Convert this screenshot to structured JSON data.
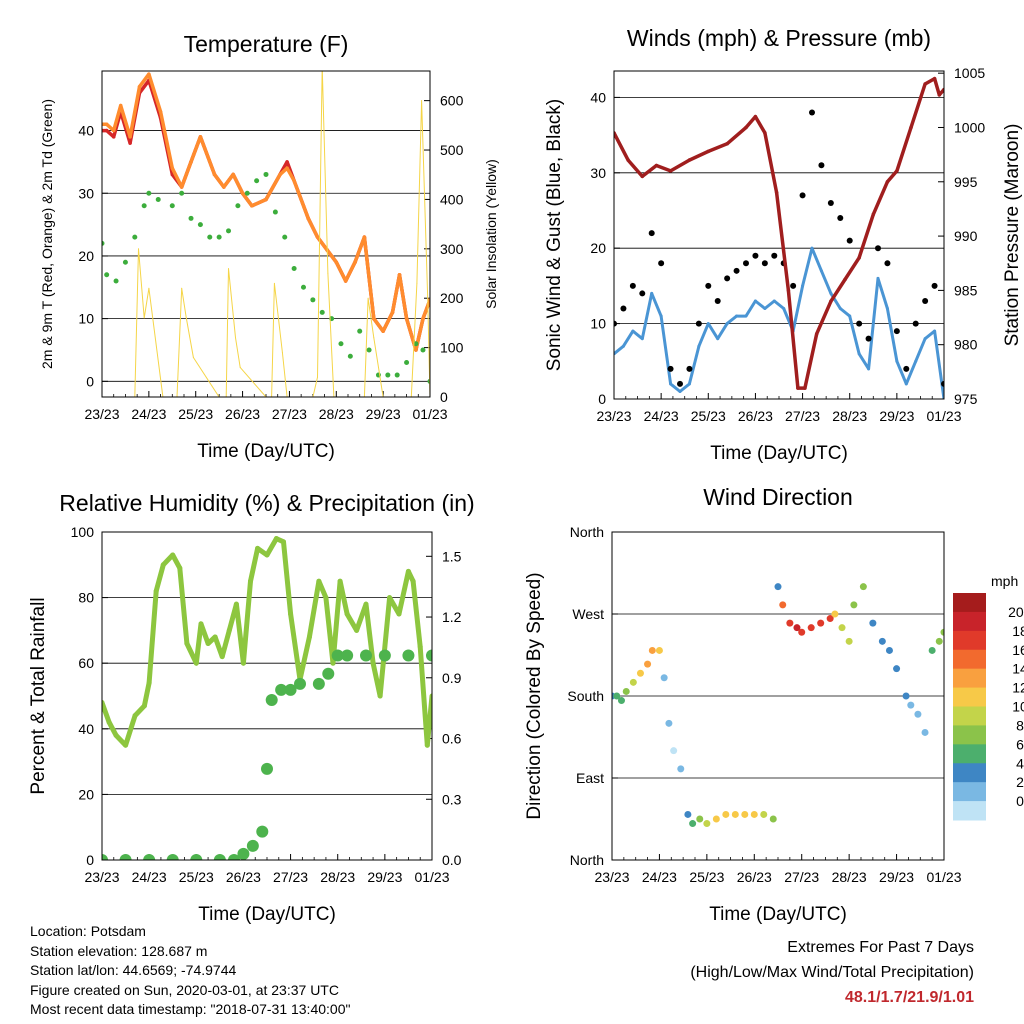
{
  "time_ticks": [
    "23/23",
    "24/23",
    "25/23",
    "26/23",
    "27/23",
    "28/23",
    "29/23",
    "01/23"
  ],
  "xlabel": "Time (Day/UTC)",
  "chart_data": [
    {
      "id": "temperature",
      "type": "line",
      "title": "Temperature (F)",
      "xlabel": "Time (Day/UTC)",
      "ylabel": "2m & 9m T (Red, Orange) & 2m Td (Green)",
      "y2label": "Solar Insolation (Yellow)",
      "ylim": [
        -2.5,
        49.5
      ],
      "y2lim": [
        0,
        660
      ],
      "yticks": [
        "0",
        "10",
        "20",
        "30",
        "40"
      ],
      "y2ticks": [
        "0",
        "100",
        "200",
        "300",
        "400",
        "500",
        "600"
      ],
      "grid": true,
      "series": [
        {
          "color": "#d62728",
          "kind": "line",
          "x": [
            0,
            0.1,
            0.25,
            0.4,
            0.6,
            0.8,
            1.0,
            1.25,
            1.5,
            1.7,
            1.9,
            2.1,
            2.4,
            2.6,
            2.8,
            3.0,
            3.2,
            3.5,
            3.8,
            3.95,
            4.1,
            4.4,
            4.6,
            4.8,
            5.0,
            5.2,
            5.4,
            5.6,
            5.8,
            6.0,
            6.2,
            6.35,
            6.5,
            6.7,
            6.85,
            7.0
          ],
          "y": [
            40,
            40,
            39,
            43,
            38,
            46,
            48,
            42,
            33,
            31,
            35,
            39,
            33,
            31,
            33,
            30,
            28,
            29,
            33,
            35,
            32,
            26,
            23,
            21,
            19,
            16,
            19,
            23,
            10,
            8,
            11,
            17,
            10,
            5,
            10,
            13
          ]
        },
        {
          "color": "#ff8c2e",
          "kind": "line",
          "x": [
            0,
            0.1,
            0.25,
            0.4,
            0.6,
            0.8,
            1.0,
            1.25,
            1.5,
            1.7,
            1.9,
            2.1,
            2.4,
            2.6,
            2.8,
            3.0,
            3.2,
            3.5,
            3.8,
            3.95,
            4.1,
            4.4,
            4.6,
            4.8,
            5.0,
            5.2,
            5.4,
            5.6,
            5.8,
            6.0,
            6.2,
            6.35,
            6.5,
            6.7,
            6.85,
            7.0
          ],
          "y": [
            41,
            41,
            40,
            44,
            39,
            47,
            49,
            43,
            34,
            31,
            35,
            39,
            33,
            31,
            33,
            30,
            28,
            29,
            33,
            34,
            32,
            26,
            23,
            21,
            19,
            16,
            19,
            23,
            10,
            8,
            11,
            17,
            10,
            5,
            10,
            13
          ]
        },
        {
          "color": "#3cad3c",
          "kind": "points",
          "x": [
            0,
            0.1,
            0.3,
            0.5,
            0.7,
            0.9,
            1.0,
            1.2,
            1.5,
            1.7,
            1.9,
            2.1,
            2.3,
            2.5,
            2.7,
            2.9,
            3.1,
            3.3,
            3.5,
            3.7,
            3.9,
            4.1,
            4.3,
            4.5,
            4.7,
            4.9,
            5.1,
            5.3,
            5.5,
            5.7,
            5.9,
            6.1,
            6.3,
            6.5,
            6.7,
            6.85,
            7.0
          ],
          "y": [
            22,
            17,
            16,
            19,
            23,
            28,
            30,
            29,
            28,
            30,
            26,
            25,
            23,
            23,
            24,
            28,
            30,
            32,
            33,
            27,
            23,
            18,
            15,
            13,
            11,
            10,
            6,
            4,
            8,
            5,
            1,
            1,
            1,
            3,
            6,
            5,
            0
          ]
        },
        {
          "color": "#f5d547",
          "kind": "line",
          "x": [
            0,
            0.7,
            0.78,
            0.9,
            1.0,
            1.3,
            1.6,
            1.7,
            1.8,
            1.95,
            2.5,
            2.65,
            2.7,
            2.85,
            2.95,
            3.5,
            3.62,
            3.68,
            3.85,
            3.95,
            4.5,
            4.6,
            4.7,
            4.82,
            4.95,
            5.6,
            5.68,
            5.8,
            5.9,
            6.0,
            6.6,
            6.72,
            6.82,
            6.95,
            7.0
          ],
          "y": [
            0,
            0,
            300,
            160,
            220,
            0,
            0,
            220,
            160,
            80,
            0,
            0,
            260,
            120,
            60,
            0,
            0,
            230,
            90,
            0,
            0,
            40,
            670,
            250,
            0,
            0,
            200,
            120,
            60,
            0,
            0,
            230,
            600,
            200,
            0
          ]
        }
      ]
    },
    {
      "id": "winds",
      "type": "line",
      "title": "Winds (mph) & Pressure (mb)",
      "xlabel": "Time (Day/UTC)",
      "ylabel": "Sonic Wind & Gust (Blue, Black)",
      "y2label": "Station Pressure (Maroon)",
      "ylim": [
        0,
        43.5
      ],
      "y2lim": [
        975,
        1005.2
      ],
      "yticks": [
        "0",
        "10",
        "20",
        "30",
        "40"
      ],
      "y2ticks": [
        "975",
        "980",
        "985",
        "990",
        "995",
        "1000",
        "1005"
      ],
      "grid": true,
      "series": [
        {
          "color": "#4a95d4",
          "kind": "line",
          "x": [
            0,
            0.2,
            0.4,
            0.6,
            0.8,
            1.0,
            1.2,
            1.4,
            1.6,
            1.8,
            2.0,
            2.2,
            2.4,
            2.6,
            2.8,
            3.0,
            3.2,
            3.4,
            3.6,
            3.8,
            4.0,
            4.2,
            4.4,
            4.6,
            4.8,
            5.0,
            5.2,
            5.4,
            5.6,
            5.8,
            6.0,
            6.2,
            6.4,
            6.6,
            6.8,
            7.0
          ],
          "y": [
            6,
            7,
            9,
            8,
            14,
            11,
            2,
            1,
            2,
            7,
            10,
            8,
            10,
            11,
            11,
            13,
            12,
            13,
            12,
            9,
            15,
            20,
            17,
            14,
            12,
            11,
            6,
            4,
            16,
            12,
            5,
            2,
            5,
            8,
            9,
            0
          ]
        },
        {
          "color": "#000000",
          "kind": "points",
          "x": [
            0,
            0.2,
            0.4,
            0.6,
            0.8,
            1.0,
            1.2,
            1.4,
            1.6,
            1.8,
            2.0,
            2.2,
            2.4,
            2.6,
            2.8,
            3.0,
            3.2,
            3.4,
            3.6,
            3.8,
            4.0,
            4.2,
            4.4,
            4.6,
            4.8,
            5.0,
            5.2,
            5.4,
            5.6,
            5.8,
            6.0,
            6.2,
            6.4,
            6.6,
            6.8,
            7.0
          ],
          "y": [
            10,
            12,
            15,
            14,
            22,
            18,
            4,
            2,
            4,
            10,
            15,
            13,
            16,
            17,
            18,
            19,
            18,
            19,
            18,
            15,
            27,
            38,
            31,
            26,
            24,
            21,
            10,
            8,
            20,
            18,
            9,
            4,
            10,
            13,
            15,
            2
          ]
        },
        {
          "color": "#a01e1e",
          "kind": "line",
          "x": [
            0,
            0.3,
            0.6,
            0.9,
            1.2,
            1.6,
            2.0,
            2.4,
            2.8,
            3.0,
            3.2,
            3.45,
            3.7,
            3.9,
            4.05,
            4.3,
            4.6,
            4.9,
            5.2,
            5.5,
            5.8,
            6.0,
            6.3,
            6.6,
            6.8,
            6.9,
            7.0
          ],
          "y": [
            999.5,
            997,
            995.5,
            996.5,
            996,
            997,
            997.8,
            998.5,
            1000,
            1001,
            999.5,
            994,
            985,
            976,
            976,
            981,
            984,
            986,
            988,
            992,
            995,
            996,
            1000,
            1004,
            1004.5,
            1003,
            1003.5
          ]
        }
      ]
    },
    {
      "id": "humidity",
      "type": "line",
      "title": "Relative Humidity (%) & Precipitation (in)",
      "xlabel": "Time (Day/UTC)",
      "ylabel": "Percent & Total Rainfall",
      "ylim": [
        0,
        100
      ],
      "y2lim": [
        0,
        1.62
      ],
      "yticks": [
        "0",
        "20",
        "40",
        "60",
        "80",
        "100"
      ],
      "y2ticks": [
        "0.0",
        "0.3",
        "0.6",
        "0.9",
        "1.2",
        "1.5"
      ],
      "grid": true,
      "series": [
        {
          "color": "#8dc63f",
          "kind": "line",
          "x": [
            0,
            0.15,
            0.3,
            0.5,
            0.7,
            0.9,
            1.0,
            1.15,
            1.3,
            1.5,
            1.65,
            1.8,
            2.0,
            2.1,
            2.25,
            2.4,
            2.55,
            2.7,
            2.85,
            3.0,
            3.15,
            3.3,
            3.5,
            3.7,
            3.85,
            4.0,
            4.2,
            4.4,
            4.6,
            4.75,
            4.9,
            5.05,
            5.2,
            5.4,
            5.6,
            5.75,
            5.9,
            6.1,
            6.3,
            6.5,
            6.6,
            6.75,
            6.9,
            7.0
          ],
          "y": [
            48,
            42,
            38,
            35,
            44,
            47,
            54,
            82,
            90,
            93,
            89,
            66,
            60,
            72,
            66,
            68,
            62,
            70,
            78,
            60,
            85,
            95,
            93,
            98,
            97,
            75,
            55,
            68,
            85,
            80,
            60,
            85,
            75,
            70,
            78,
            60,
            50,
            80,
            75,
            88,
            85,
            65,
            35,
            50
          ]
        },
        {
          "color": "#4db34d",
          "kind": "points",
          "x": [
            0,
            0.5,
            1.0,
            1.5,
            2.0,
            2.5,
            2.8,
            3.0,
            3.2,
            3.4,
            3.5,
            3.6,
            3.8,
            4.0,
            4.2,
            4.6,
            4.8,
            5.0,
            5.2,
            5.6,
            6.0,
            6.5,
            7.0
          ],
          "y": [
            0,
            0,
            0,
            0,
            0,
            0,
            0,
            0.03,
            0.07,
            0.14,
            0.45,
            0.79,
            0.84,
            0.84,
            0.87,
            0.87,
            0.92,
            1.01,
            1.01,
            1.01,
            1.01,
            1.01,
            1.01
          ]
        }
      ]
    },
    {
      "id": "direction",
      "type": "scatter",
      "title": "Wind Direction",
      "xlabel": "Time (Day/UTC)",
      "ylabel": "Direction (Colored By Speed)",
      "ylim": [
        0,
        360
      ],
      "yticks": [
        "North",
        "East",
        "South",
        "West",
        "North"
      ],
      "grid": true,
      "colorbar": {
        "unit": "mph",
        "labels": [
          "20+",
          "18",
          "16",
          "14",
          "12",
          "10",
          "8",
          "6",
          "4",
          "2",
          "0"
        ],
        "colors": [
          "#a51c1c",
          "#c8232a",
          "#e03a2a",
          "#f26a2e",
          "#f9a03f",
          "#f7c948",
          "#c3d44a",
          "#8bc34a",
          "#4caf6d",
          "#3e86c4",
          "#7ab8e3",
          "#bfe3f5"
        ]
      },
      "series": [
        {
          "kind": "points",
          "x": [
            0,
            0.1,
            0.2,
            0.3,
            0.45,
            0.6,
            0.75,
            0.85,
            1.0,
            1.1,
            1.2,
            1.3,
            1.45,
            1.6,
            1.7,
            1.85,
            2.0,
            2.2,
            2.4,
            2.6,
            2.8,
            3.0,
            3.2,
            3.4,
            3.5,
            3.6,
            3.75,
            3.9,
            4.0,
            4.2,
            4.4,
            4.6,
            4.7,
            4.85,
            5.0,
            5.1,
            5.3,
            5.5,
            5.7,
            5.85,
            6.0,
            6.2,
            6.3,
            6.45,
            6.6,
            6.75,
            6.9,
            7.0
          ],
          "y": [
            180,
            180,
            175,
            185,
            195,
            205,
            215,
            230,
            230,
            200,
            150,
            120,
            100,
            50,
            40,
            45,
            40,
            45,
            50,
            50,
            50,
            50,
            50,
            45,
            300,
            280,
            260,
            255,
            250,
            255,
            260,
            265,
            270,
            255,
            240,
            280,
            300,
            260,
            240,
            230,
            210,
            180,
            170,
            160,
            140,
            230,
            240,
            250
          ],
          "speed": [
            5,
            6,
            6,
            7,
            9,
            11,
            13,
            13,
            12,
            3,
            2,
            1,
            2,
            5,
            6,
            8,
            10,
            11,
            12,
            12,
            12,
            11,
            9,
            7,
            4,
            15,
            17,
            18,
            17,
            16,
            17,
            16,
            12,
            10,
            9,
            8,
            7,
            5,
            5,
            4,
            5,
            4,
            3,
            3,
            2,
            6,
            8,
            7
          ]
        }
      ]
    }
  ],
  "footer": {
    "location": "Location: Potsdam",
    "elevation": "Station elevation: 128.687 m",
    "latlon": "Station lat/lon: 44.6569; -74.9744",
    "created": "Figure created on Sun, 2020-03-01, at 23:37 UTC",
    "recent": "Most recent data timestamp: \"2018-07-31 13:40:00\""
  },
  "extremes": {
    "title": "Extremes For Past 7 Days",
    "subtitle": "(High/Low/Max Wind/Total Precipitation)",
    "values": "48.1/1.7/21.9/1.01"
  }
}
